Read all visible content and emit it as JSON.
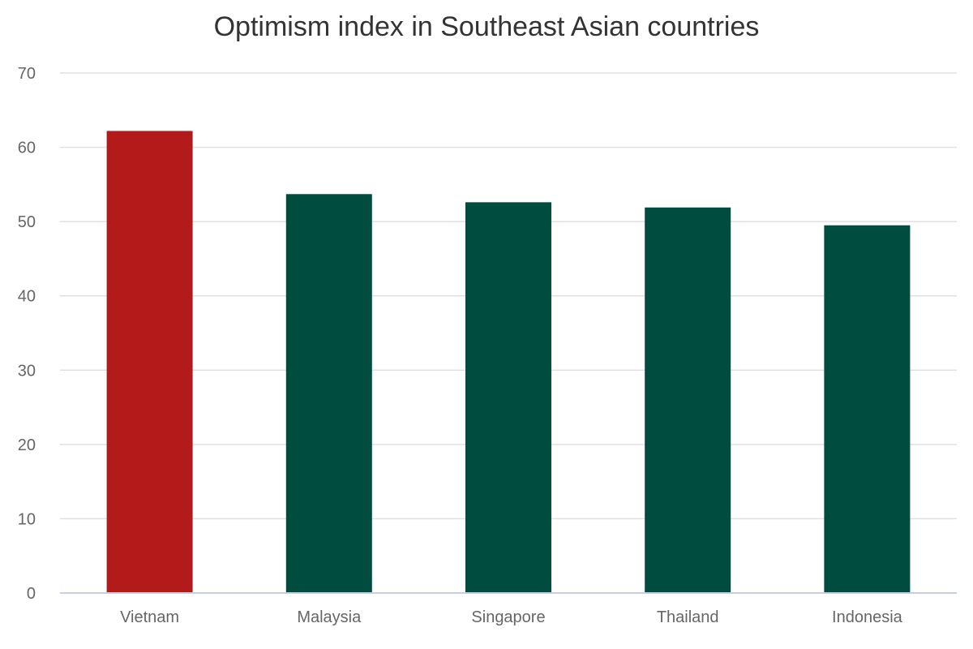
{
  "chart_data": {
    "type": "bar",
    "title": "Optimism index in Southeast Asian countries",
    "categories": [
      "Vietnam",
      "Malaysia",
      "Singapore",
      "Thailand",
      "Indonesia"
    ],
    "values": [
      62.2,
      53.7,
      52.6,
      51.9,
      49.5
    ],
    "ylim": [
      0,
      70
    ],
    "yticks": [
      0,
      10,
      20,
      30,
      40,
      50,
      60,
      70
    ],
    "xlabel": "",
    "ylabel": "",
    "grid": true,
    "legend": "none",
    "colors": {
      "highlight": "#b31b1b",
      "default": "#004d40",
      "grid": "#e0e0e0",
      "axis": "#c5cfe0",
      "tick_text": "#666666",
      "title_text": "#333333"
    },
    "highlight_index": 0
  }
}
